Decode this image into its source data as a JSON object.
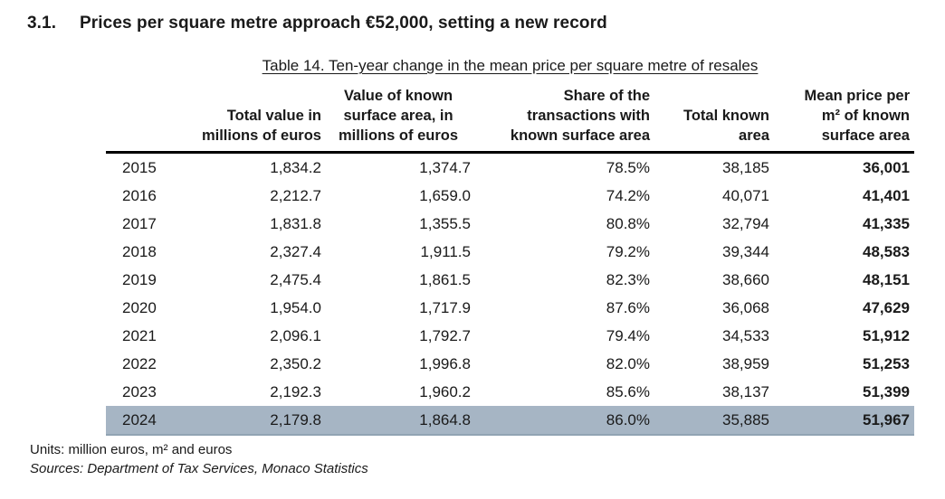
{
  "heading": {
    "number": "3.1.",
    "text": "Prices per square metre approach €52,000, setting a new record"
  },
  "table": {
    "caption": "Table 14. Ten-year change in the mean price per square metre of resales",
    "columns": [
      {
        "key": "year",
        "lines": [],
        "align": "left"
      },
      {
        "key": "total-value",
        "lines": [
          "Total value in",
          "millions of euros"
        ],
        "align": "right"
      },
      {
        "key": "known-surface-value",
        "lines": [
          "Value of known",
          "surface area, in",
          "millions of euros"
        ],
        "align": "center"
      },
      {
        "key": "share-known-surface",
        "lines": [
          "Share of the",
          "transactions with",
          "known surface area"
        ],
        "align": "right"
      },
      {
        "key": "total-known-area",
        "lines": [
          "Total known",
          "area"
        ],
        "align": "right"
      },
      {
        "key": "mean-price",
        "lines": [
          "Mean price per",
          "m² of known",
          "surface area"
        ],
        "align": "right"
      }
    ],
    "rows": [
      {
        "highlighted": false,
        "cells": [
          "2015",
          "1,834.2",
          "1,374.7",
          "78.5%",
          "38,185",
          "36,001"
        ]
      },
      {
        "highlighted": false,
        "cells": [
          "2016",
          "2,212.7",
          "1,659.0",
          "74.2%",
          "40,071",
          "41,401"
        ]
      },
      {
        "highlighted": false,
        "cells": [
          "2017",
          "1,831.8",
          "1,355.5",
          "80.8%",
          "32,794",
          "41,335"
        ]
      },
      {
        "highlighted": false,
        "cells": [
          "2018",
          "2,327.4",
          "1,911.5",
          "79.2%",
          "39,344",
          "48,583"
        ]
      },
      {
        "highlighted": false,
        "cells": [
          "2019",
          "2,475.4",
          "1,861.5",
          "82.3%",
          "38,660",
          "48,151"
        ]
      },
      {
        "highlighted": false,
        "cells": [
          "2020",
          "1,954.0",
          "1,717.9",
          "87.6%",
          "36,068",
          "47,629"
        ]
      },
      {
        "highlighted": false,
        "cells": [
          "2021",
          "2,096.1",
          "1,792.7",
          "79.4%",
          "34,533",
          "51,912"
        ]
      },
      {
        "highlighted": false,
        "cells": [
          "2022",
          "2,350.2",
          "1,996.8",
          "82.0%",
          "38,959",
          "51,253"
        ]
      },
      {
        "highlighted": false,
        "cells": [
          "2023",
          "2,192.3",
          "1,960.2",
          "85.6%",
          "38,137",
          "51,399"
        ]
      },
      {
        "highlighted": true,
        "cells": [
          "2024",
          "2,179.8",
          "1,864.8",
          "86.0%",
          "35,885",
          "51,967"
        ]
      }
    ]
  },
  "notes": {
    "units": "Units: million euros, m² and euros",
    "sources": "Sources: Department of Tax Services, Monaco Statistics"
  },
  "colors": {
    "highlight_row": "#a6b5c4",
    "text": "#1a1a1a",
    "header_rule": "#000000"
  }
}
